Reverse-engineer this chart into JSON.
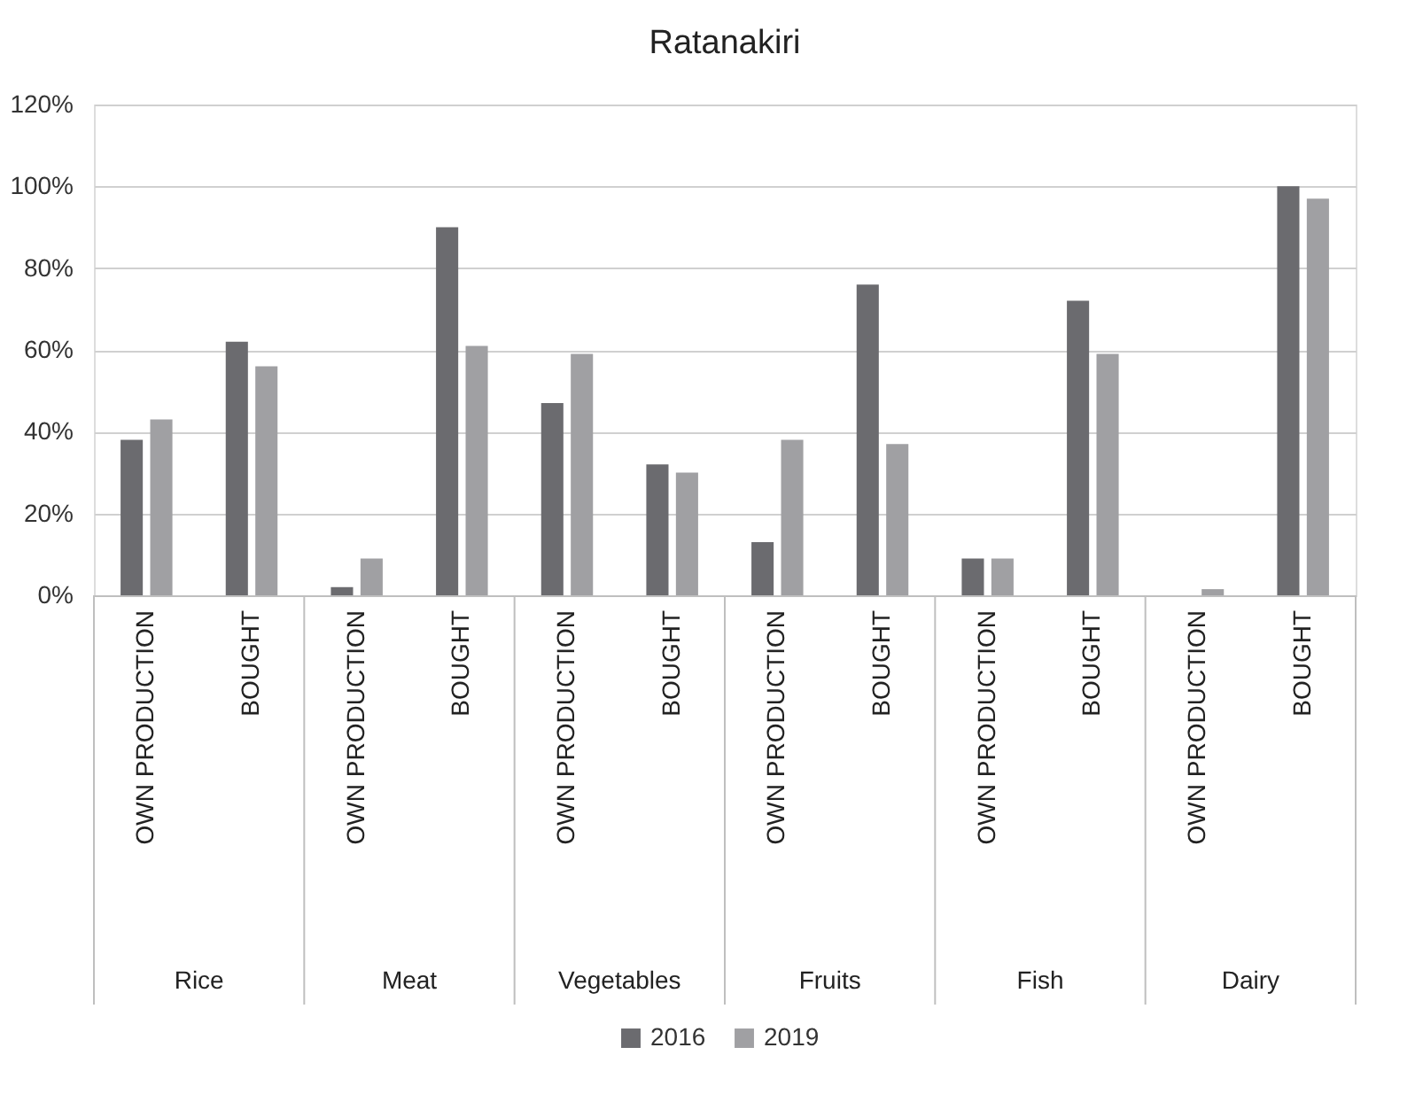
{
  "chart_data": {
    "type": "bar",
    "title": "Ratanakiri",
    "categories": [
      "OWN PRODUCTION",
      "BOUGHT",
      "OWN PRODUCTION",
      "BOUGHT",
      "OWN PRODUCTION",
      "BOUGHT",
      "OWN PRODUCTION",
      "BOUGHT",
      "OWN PRODUCTION",
      "BOUGHT",
      "OWN PRODUCTION",
      "BOUGHT"
    ],
    "annotations": [
      "Rice",
      "Meat",
      "Vegetables",
      "Fruits",
      "Fish",
      "Dairy"
    ],
    "series": [
      {
        "name": "2016",
        "color": "#6b6b6f",
        "values": [
          38,
          62,
          2,
          90,
          47,
          32,
          13,
          76,
          9,
          72,
          0,
          100
        ]
      },
      {
        "name": "2019",
        "color": "#a0a0a3",
        "values": [
          43,
          56,
          9,
          61,
          59,
          30,
          38,
          37,
          9,
          59,
          1.5,
          97
        ]
      }
    ],
    "ylim": [
      0,
      120
    ],
    "yticks": [
      {
        "value": 0,
        "label": "0%"
      },
      {
        "value": 20,
        "label": "20%"
      },
      {
        "value": 40,
        "label": "40%"
      },
      {
        "value": 60,
        "label": "60%"
      },
      {
        "value": 80,
        "label": "80%"
      },
      {
        "value": 100,
        "label": "100%"
      },
      {
        "value": 120,
        "label": "120%"
      }
    ],
    "grid": "y",
    "legend": "bottom"
  }
}
